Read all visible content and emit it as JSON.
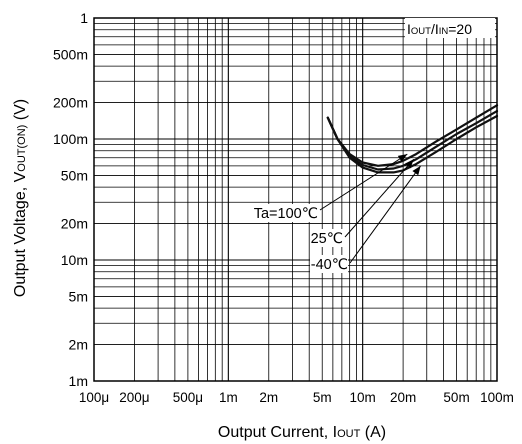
{
  "chart_data": {
    "type": "line",
    "xscale": "log",
    "yscale": "log",
    "xlim": [
      0.0001,
      0.1
    ],
    "ylim": [
      0.001,
      1
    ],
    "grid": true,
    "xlabel": "Output Current, I",
    "xlabel_sub": "OUT",
    "xlabel_unit": " (A)",
    "ylabel": "Output Voltage, V",
    "ylabel_sub": "OUT(ON)",
    "ylabel_unit": " (V)",
    "condition": "I",
    "condition_sub1": "OUT",
    "condition_mid": "/I",
    "condition_sub2": "IN",
    "condition_tail": "=20",
    "x_ticks": [
      {
        "value": 0.0001,
        "label": "100μ"
      },
      {
        "value": 0.0002,
        "label": "200μ"
      },
      {
        "value": 0.0005,
        "label": "500μ"
      },
      {
        "value": 0.001,
        "label": "1m"
      },
      {
        "value": 0.002,
        "label": "2m"
      },
      {
        "value": 0.005,
        "label": "5m"
      },
      {
        "value": 0.01,
        "label": "10m"
      },
      {
        "value": 0.02,
        "label": "20m"
      },
      {
        "value": 0.05,
        "label": "50m"
      },
      {
        "value": 0.1,
        "label": "100m"
      }
    ],
    "y_ticks": [
      {
        "value": 1,
        "label": "1"
      },
      {
        "value": 0.5,
        "label": "500m"
      },
      {
        "value": 0.2,
        "label": "200m"
      },
      {
        "value": 0.1,
        "label": "100m"
      },
      {
        "value": 0.05,
        "label": "50m"
      },
      {
        "value": 0.02,
        "label": "20m"
      },
      {
        "value": 0.01,
        "label": "10m"
      },
      {
        "value": 0.005,
        "label": "5m"
      },
      {
        "value": 0.002,
        "label": "2m"
      },
      {
        "value": 0.001,
        "label": "1m"
      }
    ],
    "series": [
      {
        "name": "Ta=100℃",
        "x": [
          0.0055,
          0.0065,
          0.008,
          0.01,
          0.013,
          0.017,
          0.02,
          0.025,
          0.035,
          0.05,
          0.07,
          0.1
        ],
        "y": [
          0.15,
          0.1,
          0.075,
          0.064,
          0.06,
          0.062,
          0.066,
          0.075,
          0.095,
          0.12,
          0.15,
          0.19
        ]
      },
      {
        "name": "25℃",
        "x": [
          0.0055,
          0.0065,
          0.008,
          0.01,
          0.013,
          0.017,
          0.02,
          0.025,
          0.035,
          0.05,
          0.07,
          0.1
        ],
        "y": [
          0.15,
          0.1,
          0.072,
          0.061,
          0.056,
          0.057,
          0.06,
          0.068,
          0.086,
          0.11,
          0.135,
          0.17
        ]
      },
      {
        "name": "-40℃",
        "x": [
          0.0055,
          0.0065,
          0.008,
          0.01,
          0.013,
          0.017,
          0.02,
          0.025,
          0.035,
          0.05,
          0.07,
          0.1
        ],
        "y": [
          0.15,
          0.1,
          0.07,
          0.058,
          0.053,
          0.053,
          0.055,
          0.062,
          0.078,
          0.1,
          0.125,
          0.155
        ]
      }
    ],
    "annotations": [
      {
        "label": "Ta=100℃",
        "target_x": 0.0215,
        "target_y": 0.075
      },
      {
        "label": "25℃",
        "target_x": 0.024,
        "target_y": 0.068
      },
      {
        "label": "-40℃",
        "target_x": 0.027,
        "target_y": 0.06
      }
    ]
  }
}
